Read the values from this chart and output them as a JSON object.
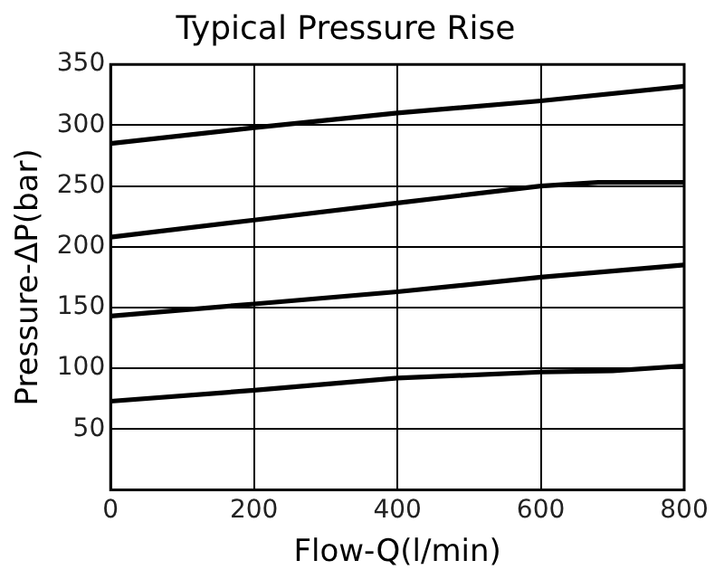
{
  "chart_data": {
    "type": "line",
    "title": "Typical Pressure Rise",
    "xlabel": "Flow-Q(l/min)",
    "ylabel": "Pressure-ΔP(bar)",
    "xlim": [
      0,
      800
    ],
    "xticks": [
      0,
      200,
      400,
      600,
      800
    ],
    "ylim": [
      0,
      350
    ],
    "yticks": [
      {
        "value": 0,
        "label": null
      },
      50,
      100,
      150,
      200,
      250,
      300,
      350
    ],
    "grid": true,
    "legend": false,
    "marker": "none",
    "line_style": "solid",
    "series": [
      {
        "color": "#000000",
        "x": [
          0,
          200,
          400,
          600,
          800
        ],
        "values": [
          285,
          298,
          310,
          320,
          332
        ]
      },
      {
        "color": "#000000",
        "x": [
          0,
          200,
          400,
          600,
          680,
          800
        ],
        "values": [
          208,
          222,
          236,
          250,
          253,
          253
        ]
      },
      {
        "color": "#000000",
        "x": [
          0,
          200,
          400,
          600,
          800
        ],
        "values": [
          143,
          153,
          163,
          175,
          185
        ]
      },
      {
        "color": "#000000",
        "x": [
          0,
          200,
          400,
          600,
          700,
          800
        ],
        "values": [
          73,
          82,
          92,
          97,
          98,
          102
        ]
      }
    ]
  }
}
